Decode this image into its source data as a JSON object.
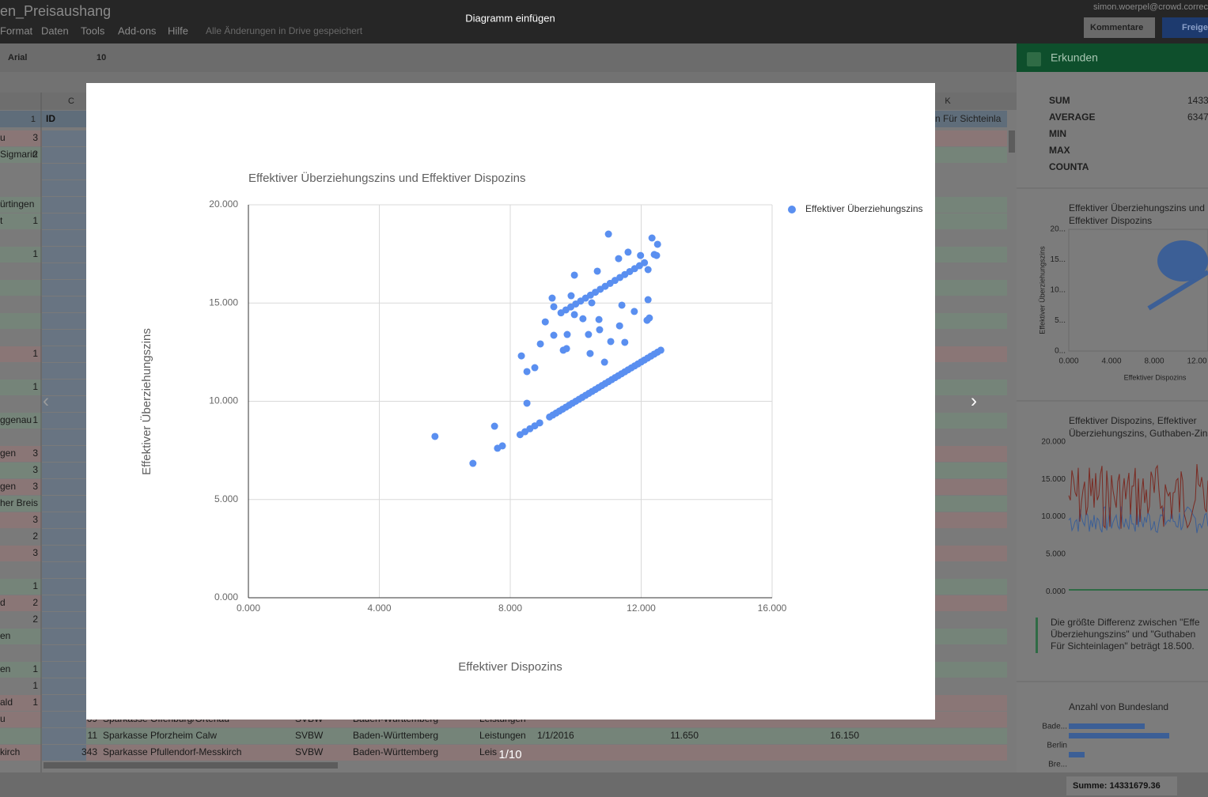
{
  "app": {
    "doc_title": "en_Preisaushang",
    "menu": [
      "Format",
      "Daten",
      "Tools",
      "Add-ons",
      "Hilfe"
    ],
    "save_status": "Alle Änderungen in Drive gespeichert",
    "user": "simon.woerpel@crowd.correc",
    "comments": "Kommentare",
    "share": "Freige"
  },
  "toolbar": {
    "font": "Arial",
    "size": "10"
  },
  "sheet": {
    "columns": [
      "C",
      "K"
    ],
    "header_row": "1",
    "header_id": "ID",
    "header_k": "n Für Sichteinla",
    "left_cells": [
      [
        "u",
        "3"
      ],
      [
        "Sigmarin",
        "2"
      ],
      [
        null,
        null
      ],
      [
        null,
        null
      ],
      [
        "ürtingen",
        null
      ],
      [
        "t",
        "1"
      ],
      [
        null,
        null
      ],
      [
        null,
        "1"
      ],
      [
        null,
        null
      ],
      [
        null,
        null
      ],
      [
        null,
        null
      ],
      [
        null,
        null
      ],
      [
        null,
        null
      ],
      [
        null,
        "1"
      ],
      [
        null,
        null
      ],
      [
        null,
        "1"
      ],
      [
        null,
        null
      ],
      [
        "ggenau",
        "1"
      ],
      [
        null,
        null
      ],
      [
        "gen",
        "3"
      ],
      [
        null,
        "3"
      ],
      [
        "gen",
        "3"
      ],
      [
        "her Breis",
        null
      ],
      [
        null,
        "3"
      ],
      [
        null,
        "2"
      ],
      [
        null,
        "3"
      ],
      [
        null,
        null
      ],
      [
        null,
        "1"
      ],
      [
        "d",
        "2"
      ],
      [
        null,
        "2"
      ],
      [
        "en",
        null
      ],
      [
        null,
        null
      ],
      [
        "en",
        "1"
      ],
      [
        null,
        "1"
      ],
      [
        "ald",
        "1"
      ]
    ],
    "rows": [
      [
        "u",
        "69",
        "Sparkasse Offenburg/Ortenau",
        "SVBW",
        "Baden-Württemberg",
        "Leistungen",
        null,
        null,
        null
      ],
      [
        null,
        "11",
        "Sparkasse Pforzheim Calw",
        "SVBW",
        "Baden-Württemberg",
        "Leistungen",
        "1/1/2016",
        "11.650",
        "16.150"
      ],
      [
        "kirch",
        "343",
        "Sparkasse Pfullendorf-Messkirch",
        "SVBW",
        "Baden-Württemberg",
        "Leis",
        null,
        null,
        null
      ]
    ],
    "sum": "Summe: 14331679.36"
  },
  "explore": {
    "title": "Erkunden",
    "stat_names": [
      "SUM",
      "AVERAGE",
      "MIN",
      "MAX",
      "COUNTA"
    ],
    "stat_values": [
      "1433",
      "6347"
    ],
    "chart1_title": [
      "Effektiver Überziehungszins und",
      "Effektiver Dispozins"
    ],
    "chart1_yticks": [
      "20...",
      "15...",
      "10...",
      "5...",
      "0..."
    ],
    "chart1_xticks": [
      "0.000",
      "4.000",
      "8.000",
      "12.00"
    ],
    "chart1_ylabel": "Effektiver Überziehungszins",
    "chart1_xlabel": "Effektiver Dispozins",
    "chart2_title": [
      "Effektiver Dispozins, Effektiver",
      "Überziehungszins, Guthaben-Zins"
    ],
    "chart2_yticks": [
      "20.000",
      "15.000",
      "10.000",
      "5.000",
      "0.000"
    ],
    "insight": [
      "Die größte Differenz zwischen \"Effe",
      "Überziehungszins\" und \"Guthaben",
      "Für Sichteinlagen\" beträgt 18.500."
    ],
    "chart3_title": "Anzahl von Bundesland",
    "chart3_labels": [
      "Bade...",
      "Berlin",
      "Bre..."
    ]
  },
  "dialog": {
    "title": "Diagramm einfügen",
    "page": "1/10",
    "prev": "‹",
    "next": "›"
  },
  "chart_data": {
    "type": "scatter",
    "title": "Effektiver Überziehungszins und Effektiver Dispozins",
    "x_label": "Effektiver Dispozins",
    "y_label": "Effektiver Überziehungszins",
    "xlim": [
      0,
      16
    ],
    "ylim": [
      0,
      20
    ],
    "xticks": [
      {
        "value": 0,
        "label": "0.000"
      },
      {
        "value": 4,
        "label": "4.000"
      },
      {
        "value": 8,
        "label": "8.000"
      },
      {
        "value": 12,
        "label": "12.000"
      },
      {
        "value": 16,
        "label": "16.000"
      }
    ],
    "yticks": [
      {
        "value": 0,
        "label": "0.000"
      },
      {
        "value": 5,
        "label": "5.000"
      },
      {
        "value": 10,
        "label": "10.000"
      },
      {
        "value": 15,
        "label": "15.000"
      },
      {
        "value": 20,
        "label": "20.000"
      }
    ],
    "grid": true,
    "legend": "right",
    "series": [
      {
        "name": "Effektiver Überziehungszins",
        "color": "#5a8ff0",
        "x": [
          5.7,
          6.86,
          7.52,
          7.61,
          7.76,
          8.34,
          8.51,
          8.75,
          8.51,
          8.92,
          9.07,
          9.28,
          9.33,
          9.33,
          9.62,
          9.72,
          9.74,
          9.86,
          9.96,
          10.22,
          10.39,
          10.44,
          10.66,
          10.71,
          10.73,
          10.88,
          11.0,
          11.07,
          11.31,
          11.34,
          11.41,
          11.5,
          11.6,
          11.79,
          11.98,
          12.18,
          12.21,
          12.21,
          12.25,
          12.33,
          12.5,
          12.4,
          12.47,
          9.96,
          10.49,
          8.3,
          8.45,
          8.6,
          8.75,
          8.9,
          9.2,
          9.3,
          9.4,
          9.5,
          9.6,
          9.7,
          9.8,
          9.9,
          10.0,
          10.1,
          10.2,
          10.3,
          10.4,
          10.5,
          10.6,
          10.7,
          10.8,
          10.9,
          11.0,
          11.1,
          11.2,
          11.3,
          11.4,
          11.5,
          11.6,
          11.7,
          11.8,
          11.9,
          12.0,
          12.1,
          12.2,
          12.3,
          12.4,
          12.5,
          12.6,
          9.55,
          9.7,
          9.85,
          10.0,
          10.15,
          10.3,
          10.45,
          10.6,
          10.75,
          10.9,
          11.05,
          11.2,
          11.35,
          11.5,
          11.65,
          11.8,
          11.95,
          12.1
        ],
        "values": [
          8.21,
          6.84,
          8.73,
          7.61,
          7.73,
          12.31,
          11.51,
          11.71,
          9.9,
          12.92,
          14.04,
          15.25,
          14.81,
          13.36,
          12.6,
          12.68,
          13.4,
          15.37,
          16.42,
          14.2,
          13.4,
          12.43,
          16.62,
          14.16,
          13.64,
          11.99,
          18.51,
          13.04,
          17.26,
          13.84,
          14.89,
          13.0,
          17.59,
          14.57,
          17.42,
          14.12,
          16.7,
          15.17,
          14.24,
          18.31,
          17.99,
          17.47,
          17.42,
          14.41,
          15.01,
          8.3,
          8.45,
          8.6,
          8.75,
          8.9,
          9.2,
          9.3,
          9.4,
          9.5,
          9.6,
          9.7,
          9.8,
          9.9,
          10.0,
          10.1,
          10.2,
          10.3,
          10.4,
          10.5,
          10.6,
          10.7,
          10.8,
          10.9,
          11.0,
          11.1,
          11.2,
          11.3,
          11.4,
          11.5,
          11.6,
          11.7,
          11.8,
          11.9,
          12.0,
          12.1,
          12.2,
          12.3,
          12.4,
          12.5,
          12.6,
          14.5,
          14.65,
          14.8,
          14.95,
          15.1,
          15.25,
          15.4,
          15.55,
          15.7,
          15.85,
          16.0,
          16.15,
          16.3,
          16.45,
          16.6,
          16.75,
          16.9,
          17.05
        ]
      }
    ]
  }
}
